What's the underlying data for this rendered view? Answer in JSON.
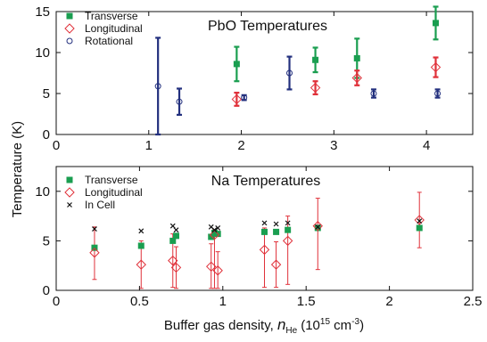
{
  "chart_data": [
    {
      "type": "scatter",
      "title": "PbO Temperatures",
      "xlim": [
        0,
        4.5
      ],
      "ylim": [
        0,
        15
      ],
      "x_ticks": [
        0,
        1,
        2,
        3,
        4
      ],
      "y_ticks": [
        0,
        5,
        10,
        15
      ],
      "legend_position": "top-left",
      "series": [
        {
          "name": "Transverse",
          "marker": "filled-square",
          "color": "#1a9e50",
          "points": [
            {
              "x": 1.95,
              "y": 8.6,
              "err": 2.1
            },
            {
              "x": 2.8,
              "y": 9.1,
              "err": 1.5
            },
            {
              "x": 3.25,
              "y": 9.3,
              "err": 2.4
            },
            {
              "x": 4.1,
              "y": 13.6,
              "err": 2.0
            }
          ]
        },
        {
          "name": "Longitudinal",
          "marker": "open-diamond",
          "color": "#e0313a",
          "points": [
            {
              "x": 1.95,
              "y": 4.3,
              "err": 0.8
            },
            {
              "x": 2.8,
              "y": 5.7,
              "err": 0.8
            },
            {
              "x": 3.25,
              "y": 6.9,
              "err": 0.9
            },
            {
              "x": 4.1,
              "y": 8.2,
              "err": 1.2
            }
          ]
        },
        {
          "name": "Rotational",
          "marker": "open-circle",
          "color": "#23307e",
          "points": [
            {
              "x": 1.1,
              "y": 5.9,
              "err": 5.9
            },
            {
              "x": 1.33,
              "y": 4.0,
              "err": 1.6
            },
            {
              "x": 2.03,
              "y": 4.5,
              "err": 0.3
            },
            {
              "x": 2.52,
              "y": 7.5,
              "err": 2.0
            },
            {
              "x": 3.43,
              "y": 5.0,
              "err": 0.5
            },
            {
              "x": 4.12,
              "y": 5.0,
              "err": 0.5
            }
          ]
        }
      ]
    },
    {
      "type": "scatter",
      "title": "Na Temperatures",
      "xlabel": "Buffer gas density, ",
      "xlabel_symbol": "n",
      "xlabel_subscript": "He",
      "xlabel_unit": "(10",
      "xlabel_unit_sup": "15",
      "xlabel_unit_tail": " cm",
      "xlabel_unit_sup2": "-3",
      "xlabel_unit_close": ")",
      "xlim": [
        0,
        2.5
      ],
      "ylim": [
        0,
        12.5
      ],
      "x_ticks": [
        "0",
        "0.5",
        "1",
        "1.5",
        "2",
        "2.5"
      ],
      "x_tick_values": [
        0,
        0.5,
        1,
        1.5,
        2,
        2.5
      ],
      "y_ticks": [
        0,
        5,
        10
      ],
      "legend_position": "top-left",
      "series": [
        {
          "name": "Transverse",
          "marker": "filled-square",
          "color": "#1a9e50",
          "points": [
            {
              "x": 0.23,
              "y": 4.3
            },
            {
              "x": 0.51,
              "y": 4.5
            },
            {
              "x": 0.7,
              "y": 5.0
            },
            {
              "x": 0.72,
              "y": 5.5
            },
            {
              "x": 0.93,
              "y": 5.4
            },
            {
              "x": 0.95,
              "y": 5.8
            },
            {
              "x": 0.97,
              "y": 5.7
            },
            {
              "x": 1.25,
              "y": 5.9
            },
            {
              "x": 1.32,
              "y": 5.9
            },
            {
              "x": 1.39,
              "y": 6.1
            },
            {
              "x": 1.57,
              "y": 6.3
            },
            {
              "x": 2.18,
              "y": 6.3
            }
          ]
        },
        {
          "name": "Longitudinal",
          "marker": "open-diamond",
          "color": "#e0313a",
          "points": [
            {
              "x": 0.23,
              "y": 3.8,
              "lo": 1.1,
              "hi": 6.4
            },
            {
              "x": 0.51,
              "y": 2.6,
              "lo": 0.2,
              "hi": 5.0
            },
            {
              "x": 0.7,
              "y": 3.0,
              "lo": 0.3,
              "hi": 5.7
            },
            {
              "x": 0.72,
              "y": 2.3,
              "lo": 0.2,
              "hi": 4.4
            },
            {
              "x": 0.93,
              "y": 2.4,
              "lo": 0.2,
              "hi": 4.7
            },
            {
              "x": 0.95,
              "y": 5.6,
              "lo": 0.2,
              "hi": 6.1
            },
            {
              "x": 0.97,
              "y": 2.0,
              "lo": 0.2,
              "hi": 3.9
            },
            {
              "x": 1.25,
              "y": 4.1,
              "lo": 0.3,
              "hi": 6.3
            },
            {
              "x": 1.32,
              "y": 2.6,
              "lo": 0.3,
              "hi": 4.9
            },
            {
              "x": 1.39,
              "y": 5.0,
              "lo": 0.6,
              "hi": 7.5
            },
            {
              "x": 1.57,
              "y": 6.5,
              "lo": 2.1,
              "hi": 9.3
            },
            {
              "x": 2.18,
              "y": 7.1,
              "lo": 4.3,
              "hi": 9.9
            }
          ]
        },
        {
          "name": "In Cell",
          "marker": "x",
          "color": "#111111",
          "points": [
            {
              "x": 0.23,
              "y": 6.2
            },
            {
              "x": 0.51,
              "y": 6.0
            },
            {
              "x": 0.7,
              "y": 6.5
            },
            {
              "x": 0.72,
              "y": 6.1
            },
            {
              "x": 0.93,
              "y": 6.4
            },
            {
              "x": 0.95,
              "y": 6.1
            },
            {
              "x": 0.97,
              "y": 6.3
            },
            {
              "x": 1.25,
              "y": 6.8
            },
            {
              "x": 1.32,
              "y": 6.7
            },
            {
              "x": 1.39,
              "y": 6.8
            },
            {
              "x": 1.57,
              "y": 6.4
            },
            {
              "x": 2.18,
              "y": 7.0
            }
          ]
        }
      ]
    }
  ],
  "shared_ylabel": "Temperature (K)"
}
